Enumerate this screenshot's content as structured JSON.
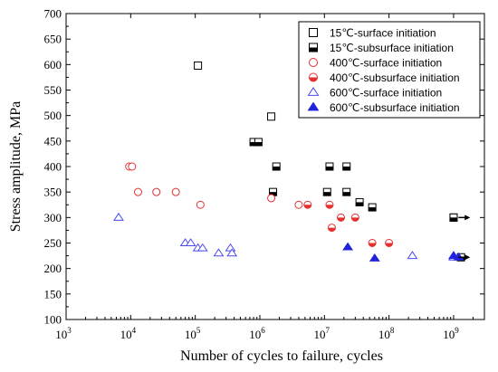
{
  "chart_data": {
    "type": "scatter",
    "title": "",
    "xlabel": "Number of cycles to failure, cycles",
    "ylabel": "Stress amplitude, MPa",
    "x_scale": "log",
    "xlim": [
      1000,
      3000000000
    ],
    "ylim": [
      100,
      700
    ],
    "grid": false,
    "legend_position": "top-right",
    "x_ticks": [
      {
        "value": 1000,
        "base": "10",
        "exp": "3"
      },
      {
        "value": 10000,
        "base": "10",
        "exp": "4"
      },
      {
        "value": 100000,
        "base": "10",
        "exp": "5"
      },
      {
        "value": 1000000,
        "base": "10",
        "exp": "6"
      },
      {
        "value": 10000000,
        "base": "10",
        "exp": "7"
      },
      {
        "value": 100000000,
        "base": "10",
        "exp": "8"
      },
      {
        "value": 1000000000,
        "base": "10",
        "exp": "9"
      }
    ],
    "y_ticks": [
      100,
      150,
      200,
      250,
      300,
      350,
      400,
      450,
      500,
      550,
      600,
      650,
      700
    ],
    "series": [
      {
        "name": "15℃-surface initiation",
        "marker": "square",
        "fill": "open",
        "color": "#000000",
        "points": [
          [
            110000,
            598
          ],
          [
            1500000,
            498
          ],
          [
            1000000000,
            300
          ]
        ]
      },
      {
        "name": "15℃-subsurface initiation",
        "marker": "square",
        "fill": "half",
        "color": "#000000",
        "points": [
          [
            800000,
            448
          ],
          [
            950000,
            448
          ],
          [
            1800000,
            400
          ],
          [
            1600000,
            350
          ],
          [
            11000000,
            350
          ],
          [
            12000000,
            400
          ],
          [
            22000000,
            400
          ],
          [
            22000000,
            350
          ],
          [
            35000000,
            330
          ],
          [
            55000000,
            320
          ],
          [
            1000000000,
            300
          ],
          [
            1300000000,
            222
          ]
        ]
      },
      {
        "name": "400℃-surface initiation",
        "marker": "circle",
        "fill": "open",
        "color": "#e53030",
        "points": [
          [
            9500,
            400
          ],
          [
            10500,
            400
          ],
          [
            13000,
            350
          ],
          [
            25000,
            350
          ],
          [
            50000,
            350
          ],
          [
            120000,
            325
          ],
          [
            1500000,
            338
          ],
          [
            4000000,
            325
          ]
        ]
      },
      {
        "name": "400℃-subsurface initiation",
        "marker": "circle",
        "fill": "half",
        "color": "#e53030",
        "points": [
          [
            5500000,
            325
          ],
          [
            12000000,
            325
          ],
          [
            13000000,
            280
          ],
          [
            18000000,
            300
          ],
          [
            30000000,
            300
          ],
          [
            55000000,
            250
          ],
          [
            100000000,
            250
          ]
        ]
      },
      {
        "name": "600℃-surface initiation",
        "marker": "triangle",
        "fill": "open",
        "color": "#4a4aee",
        "points": [
          [
            6500,
            300
          ],
          [
            70000,
            250
          ],
          [
            85000,
            250
          ],
          [
            110000,
            240
          ],
          [
            130000,
            240
          ],
          [
            230000,
            230
          ],
          [
            350000,
            240
          ],
          [
            370000,
            230
          ],
          [
            230000000,
            225
          ],
          [
            1000000000,
            222
          ]
        ]
      },
      {
        "name": "600℃-subsurface initiation",
        "marker": "triangle",
        "fill": "solid",
        "color": "#2222dd",
        "points": [
          [
            23000000,
            242
          ],
          [
            60000000,
            220
          ],
          [
            1000000000,
            225
          ],
          [
            1200000000,
            222
          ]
        ]
      }
    ],
    "runout_arrows": [
      {
        "x": 1350000000,
        "y": 300
      },
      {
        "x": 1350000000,
        "y": 222
      }
    ]
  }
}
